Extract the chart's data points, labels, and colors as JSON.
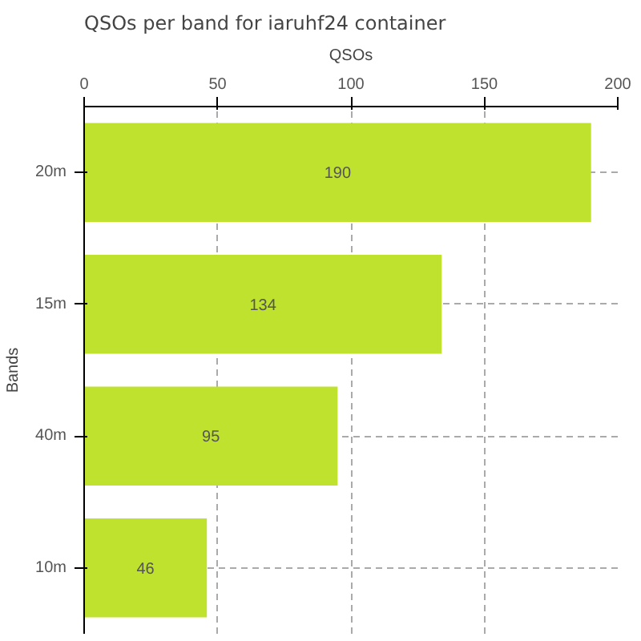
{
  "chart_data": {
    "type": "bar",
    "orientation": "horizontal",
    "title": "QSOs per band for iaruhf24 container",
    "xlabel": "QSOs",
    "ylabel": "Bands",
    "categories": [
      "20m",
      "15m",
      "40m",
      "10m"
    ],
    "values": [
      190,
      134,
      95,
      46
    ],
    "color": "#bfe22f",
    "xlim": [
      0,
      200
    ],
    "xticks": [
      0,
      50,
      100,
      150,
      200
    ],
    "grid": true,
    "data_labels": true
  }
}
